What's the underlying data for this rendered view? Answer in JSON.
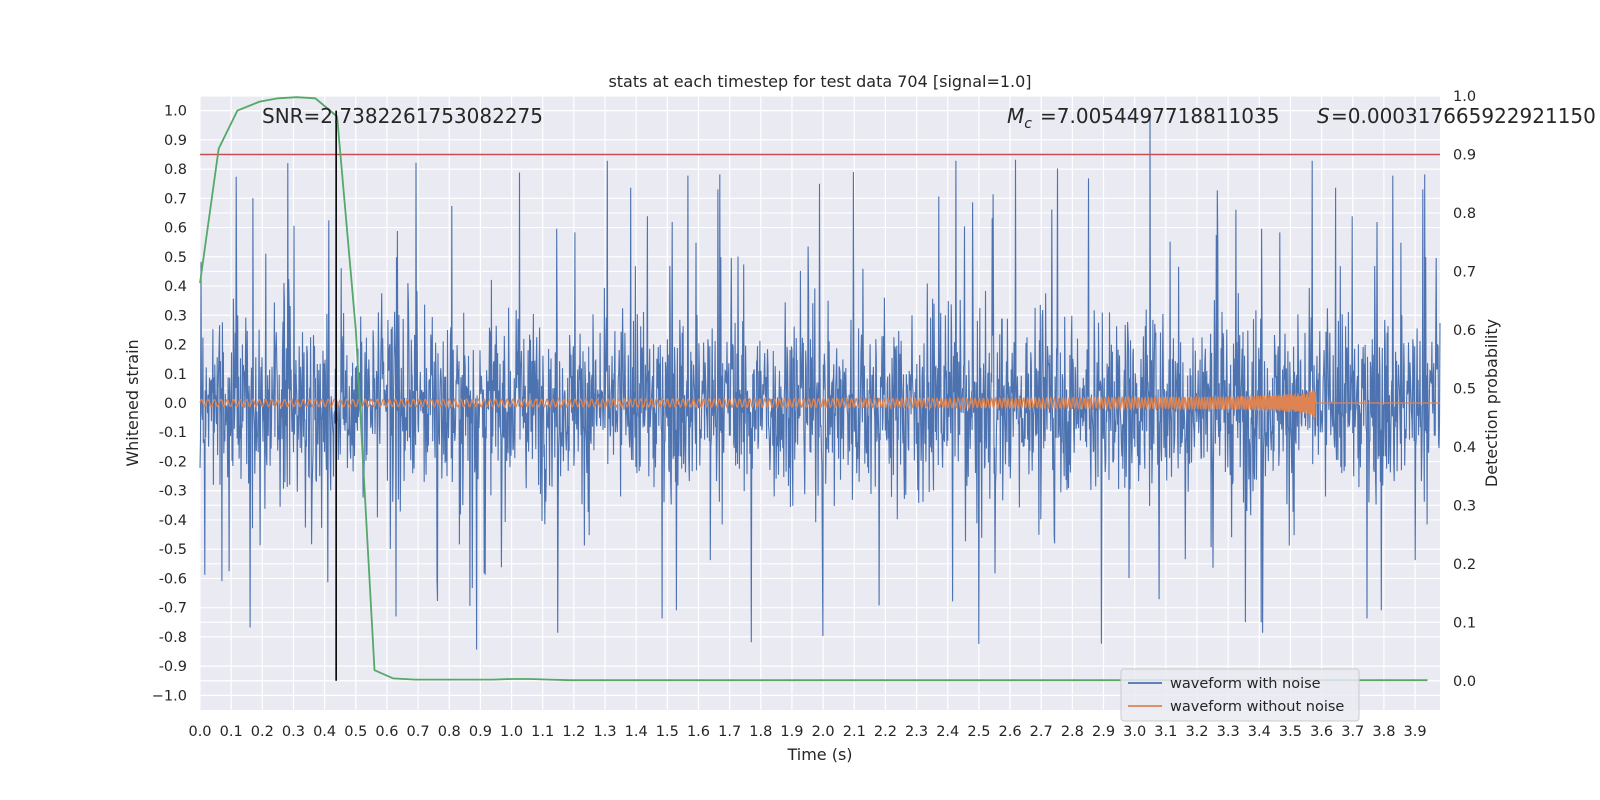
{
  "chart_data": {
    "type": "line",
    "title": "stats at each timestep for test data 704 [signal=1.0]",
    "xlabel": "Time (s)",
    "ylabel": "Whitened strain",
    "ylabel_right": "Detection probability",
    "xlim": [
      0.0,
      3.98
    ],
    "ylim": [
      -1.05,
      1.05
    ],
    "ylim_right": [
      -0.05,
      1.0
    ],
    "x_ticks": [
      "0.0",
      "0.1",
      "0.2",
      "0.3",
      "0.4",
      "0.5",
      "0.6",
      "0.7",
      "0.8",
      "0.9",
      "1.0",
      "1.1",
      "1.2",
      "1.3",
      "1.4",
      "1.5",
      "1.6",
      "1.7",
      "1.8",
      "1.9",
      "2.0",
      "2.1",
      "2.2",
      "2.3",
      "2.4",
      "2.5",
      "2.6",
      "2.7",
      "2.8",
      "2.9",
      "3.0",
      "3.1",
      "3.2",
      "3.3",
      "3.4",
      "3.5",
      "3.6",
      "3.7",
      "3.8",
      "3.9"
    ],
    "y_ticks": [
      "1.0",
      "0.9",
      "0.8",
      "0.7",
      "0.6",
      "0.5",
      "0.4",
      "0.3",
      "0.2",
      "0.1",
      "0.0",
      "-0.1",
      "-0.2",
      "-0.3",
      "-0.4",
      "-0.5",
      "-0.6",
      "-0.7",
      "-0.8",
      "-0.9",
      "−1.0"
    ],
    "y_ticks_right": [
      "1.0",
      "0.9",
      "0.8",
      "0.7",
      "0.6",
      "0.5",
      "0.4",
      "0.3",
      "0.2",
      "0.1",
      "0.0"
    ],
    "annotations": {
      "snr": "SNR=2.7382261753082275",
      "mc_value": "=7.0054497718811035",
      "s_value": "=0.000317665922921150"
    },
    "threshold_right": 0.9,
    "marker_time": 0.437,
    "merger_time": 3.58,
    "colors": {
      "noise": "#4c72b0",
      "clean": "#dd8452",
      "prob": "#55a868",
      "threshold": "#c44e52",
      "marker": "#000000"
    },
    "series": [
      {
        "name": "waveform with noise",
        "kind": "noisy strain, approx. amplitude ±0.45 with spikes to ±0.8, peak 1.0 at t=3.05"
      },
      {
        "name": "waveform without noise",
        "kind": "chirp, amplitude growing to ~0.05 before merger at t=3.58"
      },
      {
        "name": "detection probability",
        "x": [
          0.0,
          0.06,
          0.12,
          0.19,
          0.25,
          0.31,
          0.37,
          0.44,
          0.5,
          0.56,
          0.62,
          0.69,
          0.75,
          0.81,
          0.87,
          0.94,
          1.0,
          1.06,
          1.12,
          1.19,
          1.5,
          2.0,
          2.5,
          3.0,
          3.5,
          3.94
        ],
        "y": [
          0.68,
          0.91,
          0.975,
          0.99,
          0.996,
          0.998,
          0.996,
          0.965,
          0.6,
          0.018,
          0.004,
          0.002,
          0.002,
          0.002,
          0.002,
          0.002,
          0.003,
          0.003,
          0.002,
          0.001,
          0.001,
          0.001,
          0.001,
          0.001,
          0.001,
          0.001
        ]
      }
    ],
    "legend": [
      "waveform with noise",
      "waveform without noise"
    ],
    "legend_position": "lower-right",
    "grid": true
  }
}
